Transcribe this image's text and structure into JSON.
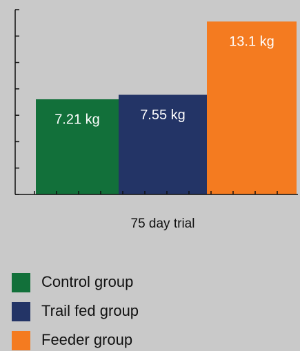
{
  "chart_data": {
    "type": "bar",
    "xlabel": "75 day trial",
    "categories": [
      "Control group",
      "Trail fed group",
      "Feeder group"
    ],
    "values": [
      7.21,
      7.55,
      13.1
    ],
    "value_labels": [
      "7.21 kg",
      "7.55 kg",
      "13.1 kg"
    ],
    "colors": [
      "#12703a",
      "#233466",
      "#f47b20"
    ],
    "ylim": [
      0,
      14
    ],
    "yticks": [
      0,
      2,
      4,
      6,
      8,
      10,
      12,
      14
    ]
  }
}
